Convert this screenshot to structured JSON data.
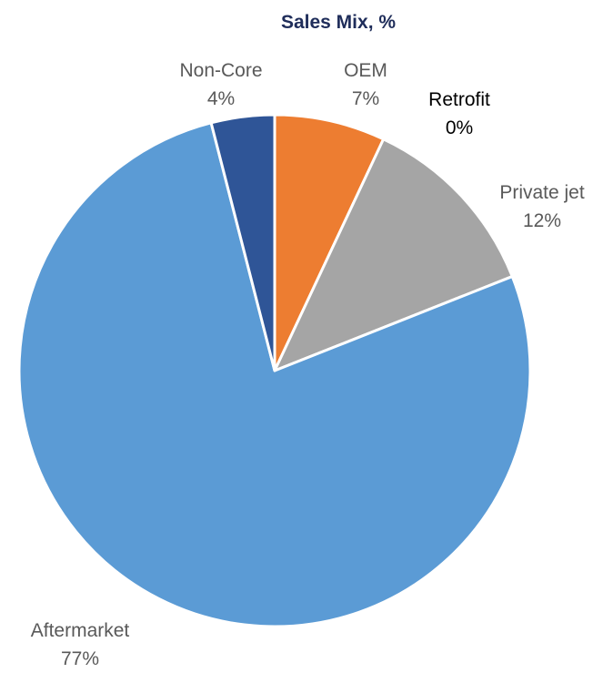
{
  "chart_data": {
    "type": "pie",
    "title": "Sales Mix, %",
    "start_angle_deg": 0,
    "direction": "clockwise",
    "slices": [
      {
        "label": "OEM",
        "value": 7,
        "value_label": "7%",
        "color": "#ED7D31",
        "label_color": "#595959"
      },
      {
        "label": "Retrofit",
        "value": 0,
        "value_label": "0%",
        "color": "#FFC000",
        "label_color": "#000000"
      },
      {
        "label": "Private jet",
        "value": 12,
        "value_label": "12%",
        "color": "#A5A5A5",
        "label_color": "#595959"
      },
      {
        "label": "Aftermarket",
        "value": 77,
        "value_label": "77%",
        "color": "#5B9BD5",
        "label_color": "#595959"
      },
      {
        "label": "Non-Core",
        "value": 4,
        "value_label": "4%",
        "color": "#2F5597",
        "label_color": "#595959"
      }
    ]
  }
}
